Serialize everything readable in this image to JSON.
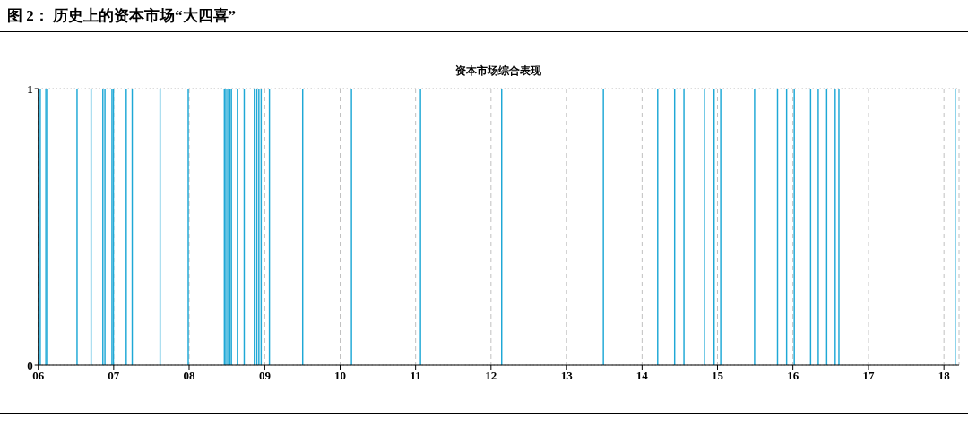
{
  "chart_data": {
    "type": "bar",
    "title": "图 2： 历史上的资本市场“大四喜”",
    "subtitle": "资本市场综合表现",
    "x": [
      "2006-01-11",
      "2006-02-07",
      "2006-02-15",
      "2006-07-08",
      "2006-09-14",
      "2006-11-10",
      "2006-11-20",
      "2006-12-24",
      "2006-12-31",
      "2007-03-03",
      "2007-04-01",
      "2007-08-14",
      "2007-12-28",
      "2008-06-20",
      "2008-06-27",
      "2008-07-06",
      "2008-07-17",
      "2008-07-24",
      "2008-08-22",
      "2008-09-24",
      "2008-11-12",
      "2008-11-24",
      "2008-12-04",
      "2008-12-15",
      "2009-01-24",
      "2009-07-04",
      "2010-02-25",
      "2011-01-25",
      "2012-02-22",
      "2013-06-28",
      "2014-03-18",
      "2014-06-08",
      "2014-07-23",
      "2014-10-30",
      "2014-12-16",
      "2015-01-17",
      "2015-06-30",
      "2015-10-19",
      "2015-12-02",
      "2016-01-08",
      "2016-03-27",
      "2016-05-03",
      "2016-06-13",
      "2016-07-24",
      "2016-08-11",
      "2018-02-25"
    ],
    "values": [
      1,
      1,
      1,
      1,
      1,
      1,
      1,
      1,
      1,
      1,
      1,
      1,
      1,
      1,
      1,
      1,
      1,
      1,
      1,
      1,
      1,
      1,
      1,
      1,
      1,
      1,
      1,
      1,
      1,
      1,
      1,
      1,
      1,
      1,
      1,
      1,
      1,
      1,
      1,
      1,
      1,
      1,
      1,
      1,
      1,
      1
    ],
    "color": "#1ea8d6",
    "xlim": [
      "2006",
      "2018-03-15"
    ],
    "xticks": [
      {
        "value": "2006",
        "label": "06"
      },
      {
        "value": "2007",
        "label": "07"
      },
      {
        "value": "2008",
        "label": "08"
      },
      {
        "value": "2009",
        "label": "09"
      },
      {
        "value": "2010",
        "label": "10"
      },
      {
        "value": "2011",
        "label": "11"
      },
      {
        "value": "2012",
        "label": "12"
      },
      {
        "value": "2013",
        "label": "13"
      },
      {
        "value": "2014",
        "label": "14"
      },
      {
        "value": "2015",
        "label": "15"
      },
      {
        "value": "2016",
        "label": "16"
      },
      {
        "value": "2017",
        "label": "17"
      },
      {
        "value": "2018",
        "label": "18"
      }
    ],
    "ylim": [
      0,
      1
    ],
    "yticks": [
      0,
      1
    ],
    "grid": true
  }
}
